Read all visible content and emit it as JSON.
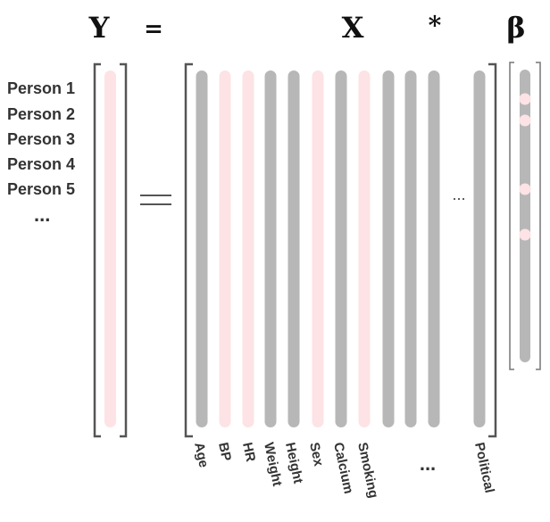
{
  "equation": {
    "y": "Y",
    "equals": "=",
    "x": "X",
    "times": "*",
    "beta": "β"
  },
  "rows": {
    "labels": [
      "Person 1",
      "Person 2",
      "Person 3",
      "Person 4",
      "Person 5"
    ],
    "more": "..."
  },
  "columns": {
    "labels": [
      "Age",
      "BP",
      "HR",
      "Weight",
      "Height",
      "Sex",
      "Calcium",
      "Smoking",
      "Political"
    ],
    "more": "...",
    "inline_more": "..."
  },
  "colors": {
    "gray": "#b7b7b7",
    "pink": "#fde3e5",
    "bracket": "#555555",
    "text": "#333333"
  },
  "column_colors": [
    "gray",
    "pink",
    "pink",
    "gray",
    "gray",
    "pink",
    "gray",
    "pink",
    "gray",
    "gray",
    "gray",
    "gray"
  ],
  "beta_highlights": 4
}
